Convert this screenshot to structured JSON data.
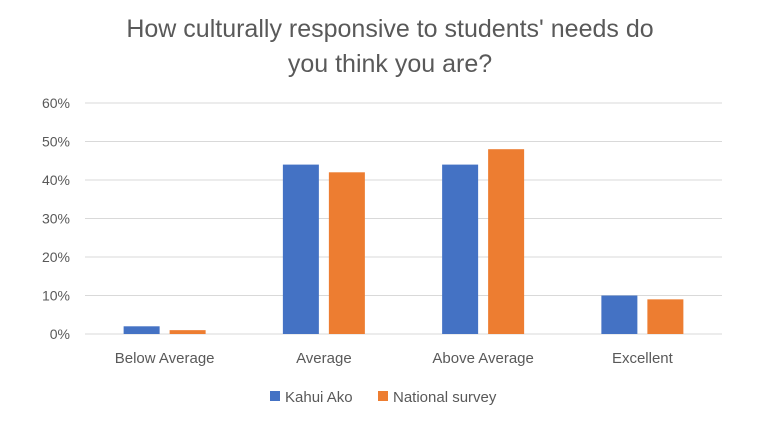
{
  "chart_data": {
    "type": "bar",
    "title_lines": [
      "How culturally responsive to students' needs do",
      "you think you are?"
    ],
    "categories": [
      "Below Average",
      "Average",
      "Above Average",
      "Excellent"
    ],
    "series": [
      {
        "name": "Kahui Ako",
        "values": [
          2,
          44,
          44,
          10
        ],
        "color": "#4472C4"
      },
      {
        "name": "National survey",
        "values": [
          1,
          42,
          48,
          9
        ],
        "color": "#ED7D31"
      }
    ],
    "y_ticks": [
      "0%",
      "10%",
      "20%",
      "30%",
      "40%",
      "50%",
      "60%"
    ],
    "ylim": [
      0,
      60
    ],
    "y_unit": "%",
    "grid": true,
    "grid_color": "#D9D9D9",
    "legend_position": "bottom"
  }
}
